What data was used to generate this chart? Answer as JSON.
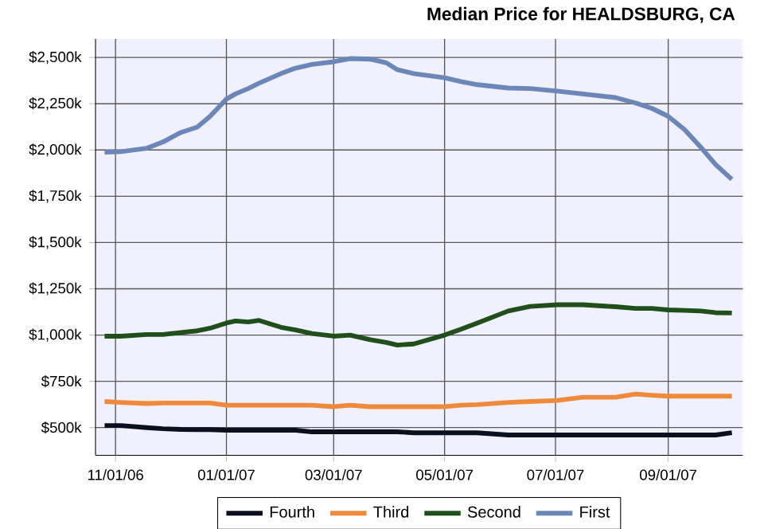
{
  "chart_data": {
    "type": "line",
    "title": "Median Price for HEALDSBURG, CA",
    "x": [
      "2006-10-26",
      "2006-11-04",
      "2006-11-18",
      "2006-11-27",
      "2006-12-07",
      "2006-12-16",
      "2006-12-23",
      "2007-01-01",
      "2007-01-06",
      "2007-01-13",
      "2007-01-19",
      "2007-01-31",
      "2007-02-08",
      "2007-02-17",
      "2007-03-01",
      "2007-03-10",
      "2007-03-21",
      "2007-03-30",
      "2007-04-05",
      "2007-04-14",
      "2007-05-01",
      "2007-05-10",
      "2007-05-19",
      "2007-06-05",
      "2007-06-17",
      "2007-07-02",
      "2007-07-16",
      "2007-08-03",
      "2007-08-14",
      "2007-08-23",
      "2007-09-01",
      "2007-09-10",
      "2007-09-19",
      "2007-09-27",
      "2007-10-06"
    ],
    "series": [
      {
        "name": "Fourth",
        "color": "#0a1020",
        "values": [
          511,
          511,
          500,
          494,
          490,
          489,
          489,
          486,
          486,
          486,
          486,
          486,
          486,
          477,
          477,
          477,
          477,
          477,
          477,
          472,
          472,
          472,
          472,
          460,
          460,
          460,
          460,
          460,
          460,
          460,
          460,
          460,
          460,
          460,
          472
        ]
      },
      {
        "name": "Third",
        "color": "#ef8a3c",
        "values": [
          641,
          636,
          630,
          633,
          633,
          633,
          633,
          621,
          621,
          621,
          621,
          621,
          621,
          621,
          613,
          621,
          613,
          613,
          613,
          613,
          613,
          621,
          624,
          636,
          641,
          647,
          664,
          664,
          681,
          675,
          670,
          670,
          670,
          670,
          670
        ]
      },
      {
        "name": "Second",
        "color": "#1f4f1a",
        "values": [
          994,
          994,
          1003,
          1003,
          1014,
          1023,
          1037,
          1065,
          1076,
          1071,
          1079,
          1042,
          1028,
          1008,
          994,
          1000,
          975,
          960,
          946,
          952,
          1000,
          1031,
          1065,
          1130,
          1155,
          1164,
          1164,
          1153,
          1144,
          1144,
          1136,
          1133,
          1130,
          1121,
          1119
        ]
      },
      {
        "name": "First",
        "color": "#6b87b8",
        "values": [
          1988,
          1991,
          2009,
          2043,
          2095,
          2124,
          2182,
          2275,
          2303,
          2332,
          2361,
          2413,
          2442,
          2462,
          2477,
          2494,
          2491,
          2471,
          2434,
          2413,
          2390,
          2370,
          2353,
          2335,
          2332,
          2318,
          2303,
          2283,
          2254,
          2225,
          2182,
          2110,
          2014,
          1922,
          1841
        ]
      }
    ],
    "xlim": [
      "2006-10-21",
      "2007-10-12"
    ],
    "xticks": [
      {
        "value": "2006-11-01",
        "label": "11/01/06"
      },
      {
        "value": "2007-01-01",
        "label": "01/01/07"
      },
      {
        "value": "2007-03-01",
        "label": "03/01/07"
      },
      {
        "value": "2007-05-01",
        "label": "05/01/07"
      },
      {
        "value": "2007-07-01",
        "label": "07/01/07"
      },
      {
        "value": "2007-09-01",
        "label": "09/01/07"
      }
    ],
    "ylim": [
      350,
      2600
    ],
    "yticks": [
      {
        "value": 500,
        "label": "$500k"
      },
      {
        "value": 750,
        "label": "$750k"
      },
      {
        "value": 1000,
        "label": "$1,000k"
      },
      {
        "value": 1250,
        "label": "$1,250k"
      },
      {
        "value": 1500,
        "label": "$1,500k"
      },
      {
        "value": 1750,
        "label": "$1,750k"
      },
      {
        "value": 2000,
        "label": "$2,000k"
      },
      {
        "value": 2250,
        "label": "$2,250k"
      },
      {
        "value": 2500,
        "label": "$2,500k"
      }
    ],
    "grid": true,
    "legend": "bottom",
    "marker": "none",
    "line_style": "solid"
  }
}
